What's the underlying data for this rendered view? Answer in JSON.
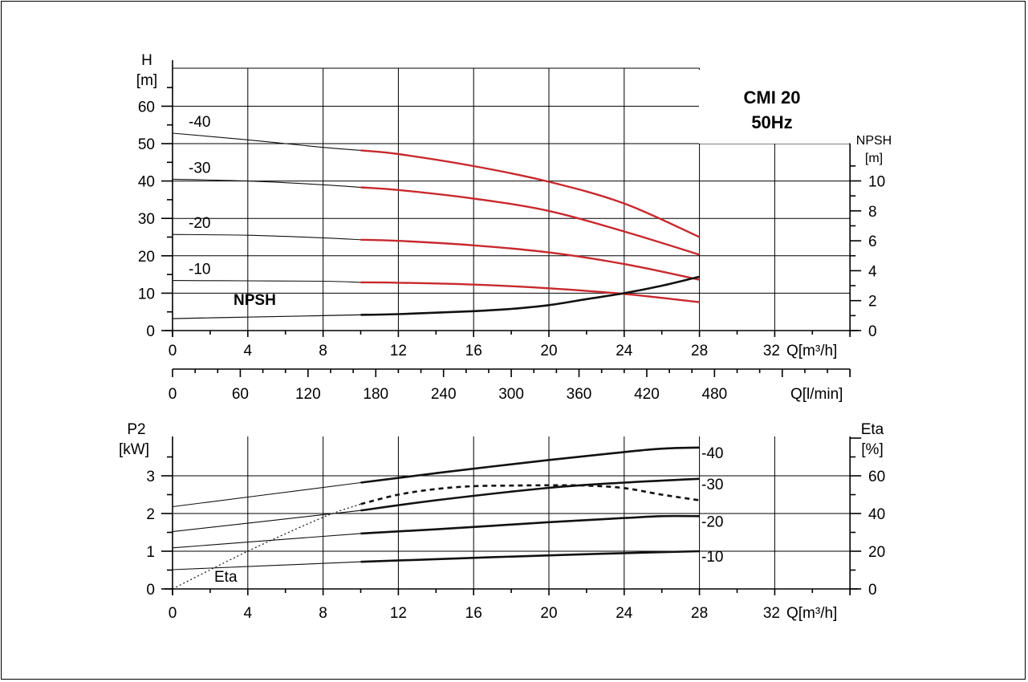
{
  "title_lines": [
    "CMI 20",
    "50Hz"
  ],
  "colors": {
    "red": "#c8292e",
    "black": "#111111"
  },
  "top_chart": {
    "y_left_label": [
      "H",
      "[m]"
    ],
    "y_right_label": [
      "NPSH",
      "[m]"
    ],
    "x_label": "Q[m³/h]",
    "x_label_lmin": "Q[l/min]",
    "npsh_label": "NPSH",
    "x_ticks": [
      "0",
      "4",
      "8",
      "12",
      "16",
      "20",
      "24",
      "28",
      "32"
    ],
    "y_left_ticks": [
      "0",
      "10",
      "20",
      "30",
      "40",
      "50",
      "60"
    ],
    "y_right_ticks": [
      "0",
      "2",
      "4",
      "6",
      "8",
      "10"
    ],
    "lmin_ticks": [
      "0",
      "60",
      "120",
      "180",
      "240",
      "300",
      "360",
      "420",
      "480"
    ]
  },
  "bottom_chart": {
    "y_left_label": [
      "P2",
      "[kW]"
    ],
    "y_right_label": [
      "Eta",
      "[%]"
    ],
    "x_label": "Q[m³/h]",
    "eta_label": "Eta",
    "x_ticks": [
      "0",
      "4",
      "8",
      "12",
      "16",
      "20",
      "24",
      "28",
      "32"
    ],
    "y_left_ticks": [
      "0",
      "1",
      "2",
      "3"
    ],
    "y_right_ticks": [
      "0",
      "20",
      "40",
      "60"
    ]
  },
  "chart_data": [
    {
      "type": "line",
      "title": "CMI 20 50Hz",
      "xlabel": "Q[m³/h]",
      "ylabel": "H [m]",
      "y2label": "NPSH [m]",
      "xlim": [
        0,
        36
      ],
      "ylim": [
        0,
        70
      ],
      "y2lim": [
        0,
        15
      ],
      "grid": true,
      "series": [
        {
          "name": "-40",
          "x": [
            0,
            4,
            8,
            10,
            12,
            16,
            20,
            24,
            28
          ],
          "y": [
            52.8,
            51.0,
            49.0,
            48.2,
            47.2,
            44.0,
            39.8,
            34.0,
            25.0
          ]
        },
        {
          "name": "-30",
          "x": [
            0,
            4,
            8,
            10,
            12,
            16,
            20,
            24,
            28
          ],
          "y": [
            40.5,
            40.0,
            39.0,
            38.3,
            37.6,
            35.3,
            32.0,
            26.5,
            20.3
          ]
        },
        {
          "name": "-20",
          "x": [
            0,
            4,
            8,
            10,
            12,
            16,
            20,
            24,
            28
          ],
          "y": [
            25.7,
            25.5,
            24.8,
            24.3,
            24.0,
            22.8,
            20.9,
            17.8,
            13.6
          ]
        },
        {
          "name": "-10",
          "x": [
            0,
            4,
            8,
            10,
            12,
            16,
            20,
            24,
            28
          ],
          "y": [
            13.4,
            13.3,
            13.2,
            12.9,
            12.8,
            12.3,
            11.3,
            9.8,
            7.6
          ]
        },
        {
          "name": "NPSH",
          "axis": "right",
          "x": [
            0,
            4,
            8,
            10,
            12,
            16,
            18,
            20,
            22,
            24,
            26,
            28
          ],
          "y": [
            0.8,
            0.9,
            1.0,
            1.05,
            1.1,
            1.3,
            1.45,
            1.7,
            2.1,
            2.5,
            3.0,
            3.6
          ]
        }
      ]
    },
    {
      "type": "line",
      "xlabel": "Q[m³/h]",
      "ylabel": "P2 [kW]",
      "y2label": "Eta [%]",
      "xlim": [
        0,
        36
      ],
      "ylim": [
        0,
        4
      ],
      "y2lim": [
        0,
        80
      ],
      "grid": true,
      "series": [
        {
          "name": "-40",
          "x": [
            0,
            10,
            14,
            20,
            24,
            26,
            28
          ],
          "y": [
            2.18,
            2.82,
            3.07,
            3.42,
            3.63,
            3.72,
            3.75
          ]
        },
        {
          "name": "-30",
          "x": [
            0,
            10,
            14,
            20,
            24,
            28
          ],
          "y": [
            1.52,
            2.08,
            2.35,
            2.68,
            2.82,
            2.92
          ]
        },
        {
          "name": "-20",
          "x": [
            0,
            10,
            14,
            20,
            24,
            26,
            28
          ],
          "y": [
            1.09,
            1.47,
            1.58,
            1.77,
            1.88,
            1.93,
            1.93
          ]
        },
        {
          "name": "-10",
          "x": [
            0,
            10,
            14,
            20,
            24,
            28
          ],
          "y": [
            0.51,
            0.72,
            0.79,
            0.89,
            0.95,
            1.0
          ]
        },
        {
          "name": "Eta",
          "axis": "right",
          "x": [
            0,
            4,
            8,
            10,
            12,
            14,
            16,
            18,
            20,
            22,
            24,
            26,
            28
          ],
          "y": [
            0,
            20,
            38,
            45,
            50,
            53,
            54.5,
            54.8,
            55,
            54.8,
            53.5,
            50,
            47
          ]
        }
      ]
    }
  ]
}
